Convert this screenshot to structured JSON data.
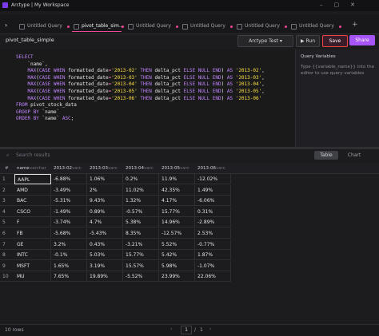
{
  "window": {
    "title": "Arctype | My Workspace"
  },
  "tabs": [
    "Untitled Query",
    "pivot_table_sim...",
    "Untitled Query",
    "Untitled Query",
    "Untitled Query",
    "Untitled Query"
  ],
  "query_name": "pivot_table_simple",
  "toolbar": {
    "connection": "Arctype Test",
    "run": "Run",
    "save": "Save",
    "share": "Share"
  },
  "sql": [
    "SELECT",
    "    `name`,",
    "    MAX(CASE WHEN formatted_date='2013-02' THEN delta_pct ELSE NULL END) AS '2013-02',",
    "    MAX(CASE WHEN formatted_date='2013-03' THEN delta_pct ELSE NULL END) AS '2013-03',",
    "    MAX(CASE WHEN formatted_date='2013-04' THEN delta_pct ELSE NULL END) AS '2013-04',",
    "    MAX(CASE WHEN formatted_date='2013-05' THEN delta_pct ELSE NULL END) AS '2013-05',",
    "    MAX(CASE WHEN formatted_date='2013-06' THEN delta_pct ELSE NULL END) AS '2013-06'",
    "FROM pivot_stock_data",
    "GROUP BY `name`",
    "ORDER BY `name` ASC;"
  ],
  "variables": {
    "title": "Query Variables",
    "hint": "Type {{variable_name}} into the editor to use query variables"
  },
  "results": {
    "search": "Search results",
    "table_tab": "Table",
    "chart_tab": "Chart"
  },
  "table": {
    "index_header": "#",
    "columns": [
      {
        "name": "name",
        "type": "varchar"
      },
      {
        "name": "2013-02",
        "type": "varc"
      },
      {
        "name": "2013-03",
        "type": "varc"
      },
      {
        "name": "2013-04",
        "type": "varc"
      },
      {
        "name": "2013-05",
        "type": "varc"
      },
      {
        "name": "2013-06",
        "type": "varc"
      }
    ],
    "rows": [
      [
        "1",
        "AAPL",
        "-6.88%",
        "1.06%",
        "0.2%",
        "11.9%",
        "-12.02%"
      ],
      [
        "2",
        "AMD",
        "-3.49%",
        "2%",
        "11.02%",
        "42.35%",
        "1.49%"
      ],
      [
        "3",
        "BAC",
        "-5.31%",
        "9.43%",
        "1.32%",
        "4.17%",
        "-6.06%"
      ],
      [
        "4",
        "CSCO",
        "-1.49%",
        "0.89%",
        "-0.57%",
        "15.77%",
        "0.31%"
      ],
      [
        "5",
        "F",
        "-3.74%",
        "4.7%",
        "5.38%",
        "14.96%",
        "-2.89%"
      ],
      [
        "6",
        "FB",
        "-5.68%",
        "-5.43%",
        "8.35%",
        "-12.57%",
        "2.53%"
      ],
      [
        "7",
        "GE",
        "3.2%",
        "0.43%",
        "-3.21%",
        "5.52%",
        "-0.77%"
      ],
      [
        "8",
        "INTC",
        "-0.1%",
        "5.03%",
        "15.77%",
        "5.42%",
        "1.87%"
      ],
      [
        "9",
        "MSFT",
        "1.65%",
        "3.19%",
        "15.57%",
        "5.98%",
        "-1.07%"
      ],
      [
        "10",
        "MU",
        "7.65%",
        "19.89%",
        "-5.52%",
        "23.99%",
        "22.06%"
      ]
    ]
  },
  "footer": {
    "row_count": "10 rows",
    "page": "1",
    "separator": "/",
    "total": "1"
  }
}
